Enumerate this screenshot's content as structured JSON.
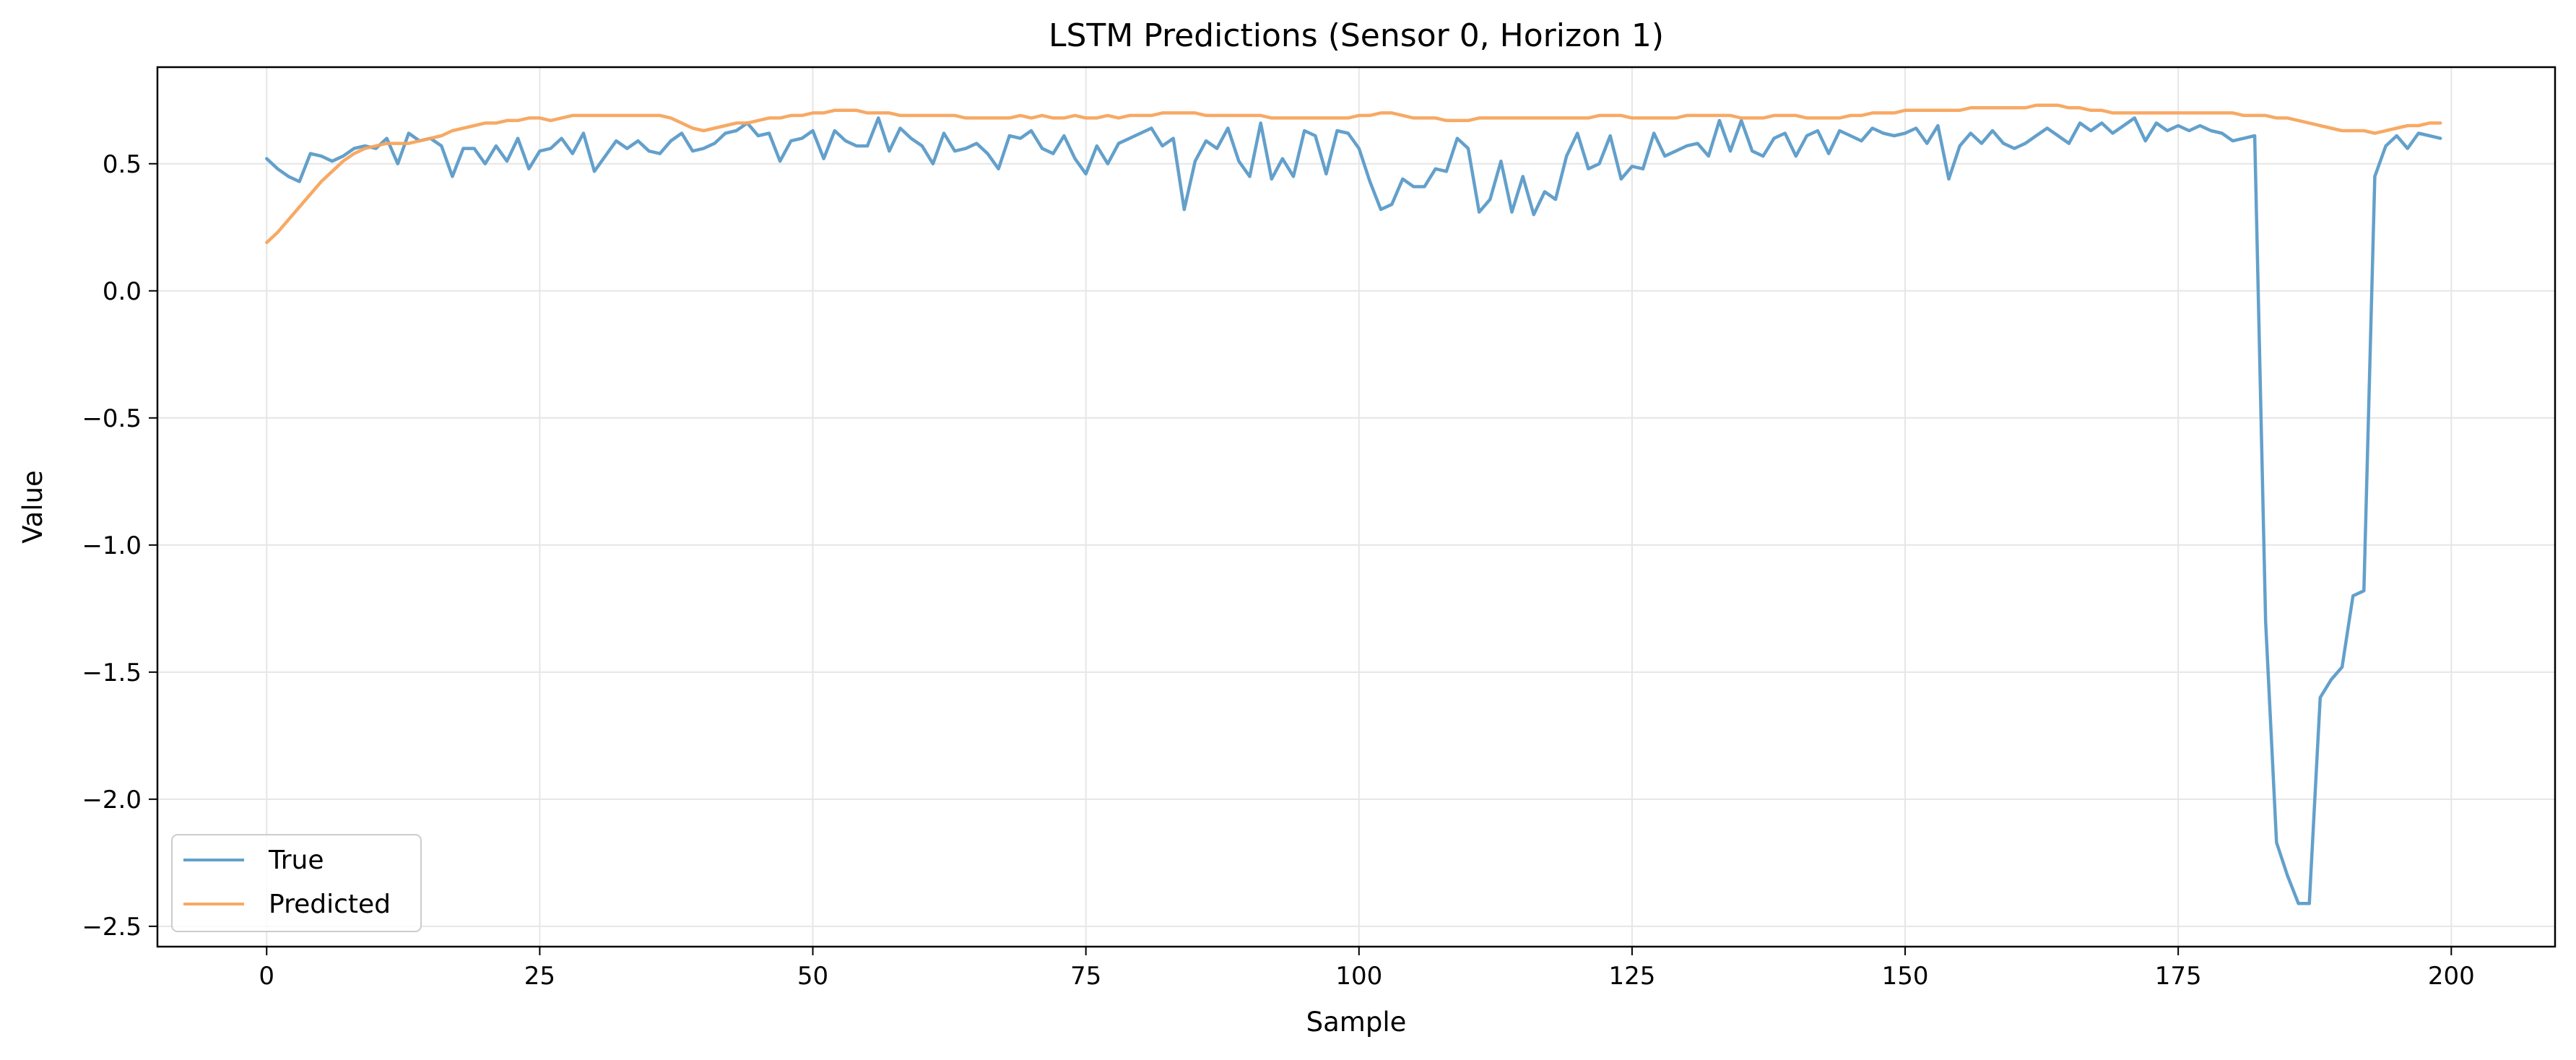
{
  "chart_data": {
    "type": "line",
    "title": "LSTM Predictions (Sensor 0, Horizon 1)",
    "xlabel": "Sample",
    "ylabel": "Value",
    "xlim": [
      -10,
      209.5
    ],
    "ylim": [
      -2.58,
      0.88
    ],
    "xticks": [
      0,
      25,
      50,
      75,
      100,
      125,
      150,
      175,
      200
    ],
    "yticks": [
      0.5,
      0.0,
      -0.5,
      -1.0,
      -1.5,
      -2.0,
      -2.5
    ],
    "xtick_labels": [
      "0",
      "25",
      "50",
      "75",
      "100",
      "125",
      "150",
      "175",
      "200"
    ],
    "ytick_labels": [
      "0.5",
      "0.0",
      "−0.5",
      "−1.0",
      "−1.5",
      "−2.0",
      "−2.5"
    ],
    "grid": true,
    "legend_position": "lower-left",
    "colors": {
      "true": "#5b9bc8",
      "predicted": "#f7a45c"
    },
    "series": [
      {
        "name": "True",
        "values": [
          0.52,
          0.48,
          0.45,
          0.43,
          0.54,
          0.53,
          0.51,
          0.53,
          0.56,
          0.57,
          0.56,
          0.6,
          0.5,
          0.62,
          0.59,
          0.6,
          0.57,
          0.45,
          0.56,
          0.56,
          0.5,
          0.57,
          0.51,
          0.6,
          0.48,
          0.55,
          0.56,
          0.6,
          0.54,
          0.62,
          0.47,
          0.53,
          0.59,
          0.56,
          0.59,
          0.55,
          0.54,
          0.59,
          0.62,
          0.55,
          0.56,
          0.58,
          0.62,
          0.63,
          0.66,
          0.61,
          0.62,
          0.51,
          0.59,
          0.6,
          0.63,
          0.52,
          0.63,
          0.59,
          0.57,
          0.57,
          0.68,
          0.55,
          0.64,
          0.6,
          0.57,
          0.5,
          0.62,
          0.55,
          0.56,
          0.58,
          0.54,
          0.48,
          0.61,
          0.6,
          0.63,
          0.56,
          0.54,
          0.61,
          0.52,
          0.46,
          0.57,
          0.5,
          0.58,
          0.6,
          0.62,
          0.64,
          0.57,
          0.6,
          0.32,
          0.51,
          0.59,
          0.56,
          0.64,
          0.51,
          0.45,
          0.66,
          0.44,
          0.52,
          0.45,
          0.63,
          0.61,
          0.46,
          0.63,
          0.62,
          0.56,
          0.43,
          0.32,
          0.34,
          0.44,
          0.41,
          0.41,
          0.48,
          0.47,
          0.6,
          0.56,
          0.31,
          0.36,
          0.51,
          0.31,
          0.45,
          0.3,
          0.39,
          0.36,
          0.53,
          0.62,
          0.48,
          0.5,
          0.61,
          0.44,
          0.49,
          0.48,
          0.62,
          0.53,
          0.55,
          0.57,
          0.58,
          0.53,
          0.67,
          0.55,
          0.67,
          0.55,
          0.53,
          0.6,
          0.62,
          0.53,
          0.61,
          0.63,
          0.54,
          0.63,
          0.61,
          0.59,
          0.64,
          0.62,
          0.61,
          0.62,
          0.64,
          0.58,
          0.65,
          0.44,
          0.57,
          0.62,
          0.58,
          0.63,
          0.58,
          0.56,
          0.58,
          0.61,
          0.64,
          0.61,
          0.58,
          0.66,
          0.63,
          0.66,
          0.62,
          0.65,
          0.68,
          0.59,
          0.66,
          0.63,
          0.65,
          0.63,
          0.65,
          0.63,
          0.62,
          0.59,
          0.6,
          0.61,
          -1.3,
          -2.17,
          -2.3,
          -2.41,
          -2.41,
          -1.6,
          -1.53,
          -1.48,
          -1.2,
          -1.18,
          0.45,
          0.57,
          0.61,
          0.56,
          0.62,
          0.61,
          0.6
        ]
      },
      {
        "name": "Predicted",
        "values": [
          0.19,
          0.23,
          0.28,
          0.33,
          0.38,
          0.43,
          0.47,
          0.51,
          0.54,
          0.56,
          0.57,
          0.58,
          0.58,
          0.58,
          0.59,
          0.6,
          0.61,
          0.63,
          0.64,
          0.65,
          0.66,
          0.66,
          0.67,
          0.67,
          0.68,
          0.68,
          0.67,
          0.68,
          0.69,
          0.69,
          0.69,
          0.69,
          0.69,
          0.69,
          0.69,
          0.69,
          0.69,
          0.68,
          0.66,
          0.64,
          0.63,
          0.64,
          0.65,
          0.66,
          0.66,
          0.67,
          0.68,
          0.68,
          0.69,
          0.69,
          0.7,
          0.7,
          0.71,
          0.71,
          0.71,
          0.7,
          0.7,
          0.7,
          0.69,
          0.69,
          0.69,
          0.69,
          0.69,
          0.69,
          0.68,
          0.68,
          0.68,
          0.68,
          0.68,
          0.69,
          0.68,
          0.69,
          0.68,
          0.68,
          0.69,
          0.68,
          0.68,
          0.69,
          0.68,
          0.69,
          0.69,
          0.69,
          0.7,
          0.7,
          0.7,
          0.7,
          0.69,
          0.69,
          0.69,
          0.69,
          0.69,
          0.69,
          0.68,
          0.68,
          0.68,
          0.68,
          0.68,
          0.68,
          0.68,
          0.68,
          0.69,
          0.69,
          0.7,
          0.7,
          0.69,
          0.68,
          0.68,
          0.68,
          0.67,
          0.67,
          0.67,
          0.68,
          0.68,
          0.68,
          0.68,
          0.68,
          0.68,
          0.68,
          0.68,
          0.68,
          0.68,
          0.68,
          0.69,
          0.69,
          0.69,
          0.68,
          0.68,
          0.68,
          0.68,
          0.68,
          0.69,
          0.69,
          0.69,
          0.69,
          0.69,
          0.68,
          0.68,
          0.68,
          0.69,
          0.69,
          0.69,
          0.68,
          0.68,
          0.68,
          0.68,
          0.69,
          0.69,
          0.7,
          0.7,
          0.7,
          0.71,
          0.71,
          0.71,
          0.71,
          0.71,
          0.71,
          0.72,
          0.72,
          0.72,
          0.72,
          0.72,
          0.72,
          0.73,
          0.73,
          0.73,
          0.72,
          0.72,
          0.71,
          0.71,
          0.7,
          0.7,
          0.7,
          0.7,
          0.7,
          0.7,
          0.7,
          0.7,
          0.7,
          0.7,
          0.7,
          0.7,
          0.69,
          0.69,
          0.69,
          0.68,
          0.68,
          0.67,
          0.66,
          0.65,
          0.64,
          0.63,
          0.63,
          0.63,
          0.62,
          0.63,
          0.64,
          0.65,
          0.65,
          0.66,
          0.66
        ]
      }
    ]
  }
}
